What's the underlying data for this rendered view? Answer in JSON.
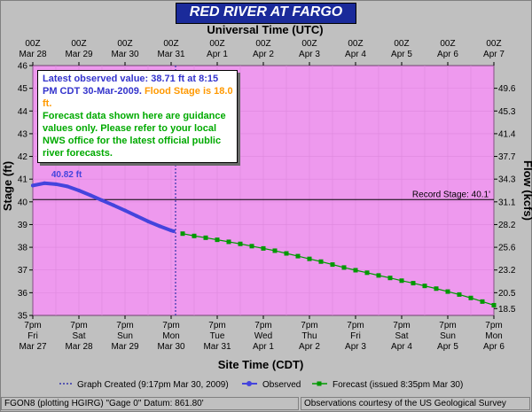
{
  "title": "RED RIVER  AT FARGO",
  "info_box": {
    "latest_text": "Latest observed value: 38.71 ft at 8:15 PM CDT 30-Mar-2009.",
    "flood_text": "Flood Stage is 18.0 ft.",
    "forecast_text": "Forecast data shown here are guidance values only. Please refer to your local NWS office for the latest official public river forecasts."
  },
  "legend": {
    "graph_created": "Graph Created (9:17pm Mar 30, 2009)",
    "observed": "Observed",
    "forecast": "Forecast (issued 8:35pm Mar 30)"
  },
  "footer": {
    "left": "FGON8 (plotting HGIRG)  \"Gage 0\" Datum: 861.80'",
    "right": "Observations courtesy of the  US Geological Survey"
  },
  "colors": {
    "plot_bg": "#ee99ee",
    "observed": "#4444dd",
    "forecast": "#009900",
    "title_bg": "#1a2a9a",
    "frame": "#c0c0c0"
  },
  "chart_data": {
    "type": "line",
    "title": "RED RIVER  AT FARGO",
    "xlabel": "Site Time (CDT)",
    "xlabel_top": "Universal Time (UTC)",
    "ylabel": "Stage (ft)",
    "ylabel_right": "Flow (kcfs)",
    "ylim": [
      35,
      46
    ],
    "xlim_hours_from_mar27_7pm": [
      0,
      240
    ],
    "yticks": [
      "35",
      "36",
      "37",
      "38",
      "39",
      "40",
      "41",
      "42",
      "43",
      "44",
      "45",
      "46"
    ],
    "yticks_right": [
      {
        "stage": 35.3,
        "label": "18.5"
      },
      {
        "stage": 36.0,
        "label": "20.5"
      },
      {
        "stage": 37.0,
        "label": "23.2"
      },
      {
        "stage": 38.0,
        "label": "25.6"
      },
      {
        "stage": 39.0,
        "label": "28.2"
      },
      {
        "stage": 40.0,
        "label": "31.1"
      },
      {
        "stage": 41.0,
        "label": "34.3"
      },
      {
        "stage": 42.0,
        "label": "37.7"
      },
      {
        "stage": 43.0,
        "label": "41.4"
      },
      {
        "stage": 44.0,
        "label": "45.3"
      },
      {
        "stage": 45.0,
        "label": "49.6"
      }
    ],
    "xticks_bottom": [
      {
        "top": "7pm",
        "mid": "Fri",
        "bot": "Mar 27"
      },
      {
        "top": "7pm",
        "mid": "Sat",
        "bot": "Mar 28"
      },
      {
        "top": "7pm",
        "mid": "Sun",
        "bot": "Mar 29"
      },
      {
        "top": "7pm",
        "mid": "Mon",
        "bot": "Mar 30"
      },
      {
        "top": "7pm",
        "mid": "Tue",
        "bot": "Mar 31"
      },
      {
        "top": "7pm",
        "mid": "Wed",
        "bot": "Apr 1"
      },
      {
        "top": "7pm",
        "mid": "Thu",
        "bot": "Apr 2"
      },
      {
        "top": "7pm",
        "mid": "Fri",
        "bot": "Apr 3"
      },
      {
        "top": "7pm",
        "mid": "Sat",
        "bot": "Apr 4"
      },
      {
        "top": "7pm",
        "mid": "Sun",
        "bot": "Apr 5"
      },
      {
        "top": "7pm",
        "mid": "Mon",
        "bot": "Apr 6"
      }
    ],
    "xticks_top": [
      {
        "top": "00Z",
        "bot": "Mar 28"
      },
      {
        "top": "00Z",
        "bot": "Mar 29"
      },
      {
        "top": "00Z",
        "bot": "Mar 30"
      },
      {
        "top": "00Z",
        "bot": "Mar 31"
      },
      {
        "top": "00Z",
        "bot": "Apr 1"
      },
      {
        "top": "00Z",
        "bot": "Apr 2"
      },
      {
        "top": "00Z",
        "bot": "Apr 3"
      },
      {
        "top": "00Z",
        "bot": "Apr 4"
      },
      {
        "top": "00Z",
        "bot": "Apr 5"
      },
      {
        "top": "00Z",
        "bot": "Apr 6"
      },
      {
        "top": "00Z",
        "bot": "Apr 7"
      }
    ],
    "record_stage": {
      "value": 40.1,
      "label": "Record Stage: 40.1'"
    },
    "graph_created_hour": 74.3,
    "peak_label": {
      "text": "40.82 ft",
      "hour": 5,
      "value": 40.82
    },
    "observed": {
      "name": "Observed",
      "hours": [
        0,
        6,
        12,
        18,
        24,
        30,
        36,
        42,
        48,
        54,
        60,
        66,
        72,
        73.25
      ],
      "values": [
        40.72,
        40.82,
        40.78,
        40.68,
        40.5,
        40.29,
        40.07,
        39.85,
        39.62,
        39.38,
        39.14,
        38.93,
        38.74,
        38.71
      ]
    },
    "forecast": {
      "name": "Forecast (issued 8:35pm Mar 30)",
      "hours": [
        78,
        84,
        90,
        96,
        102,
        108,
        114,
        120,
        126,
        132,
        138,
        144,
        150,
        156,
        162,
        168,
        174,
        180,
        186,
        192,
        198,
        204,
        210,
        216,
        222,
        228,
        234,
        240
      ],
      "values": [
        38.6,
        38.5,
        38.42,
        38.33,
        38.24,
        38.15,
        38.05,
        37.95,
        37.85,
        37.73,
        37.61,
        37.49,
        37.37,
        37.24,
        37.11,
        36.99,
        36.88,
        36.76,
        36.65,
        36.53,
        36.42,
        36.3,
        36.18,
        36.05,
        35.92,
        35.77,
        35.61,
        35.45
      ]
    }
  }
}
